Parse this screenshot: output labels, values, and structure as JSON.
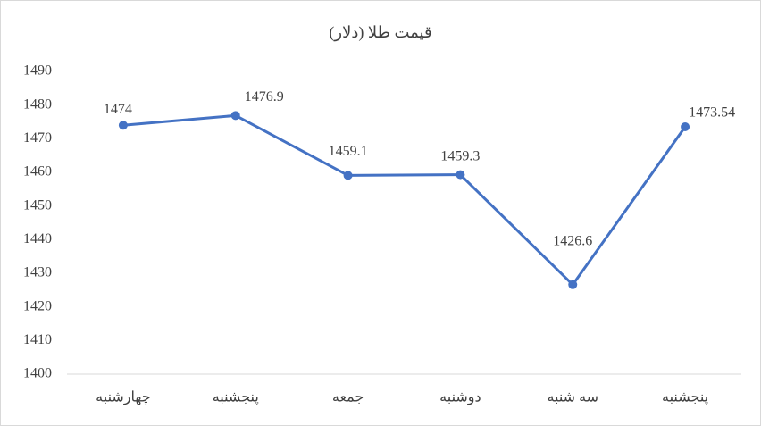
{
  "chart_data": {
    "type": "line",
    "title": "قیمت طلا (دلار)",
    "categories": [
      "چهارشنبه",
      "پنجشنبه",
      "جمعه",
      "دوشنبه",
      "سه شنبه",
      "پنجشنبه"
    ],
    "values": [
      1474,
      1476.9,
      1459.1,
      1459.3,
      1426.6,
      1473.54
    ],
    "color": "#4472c4",
    "ylim": [
      1400,
      1490
    ],
    "yticks": [
      1400,
      1410,
      1420,
      1430,
      1440,
      1450,
      1460,
      1470,
      1480,
      1490
    ],
    "grid": false
  }
}
